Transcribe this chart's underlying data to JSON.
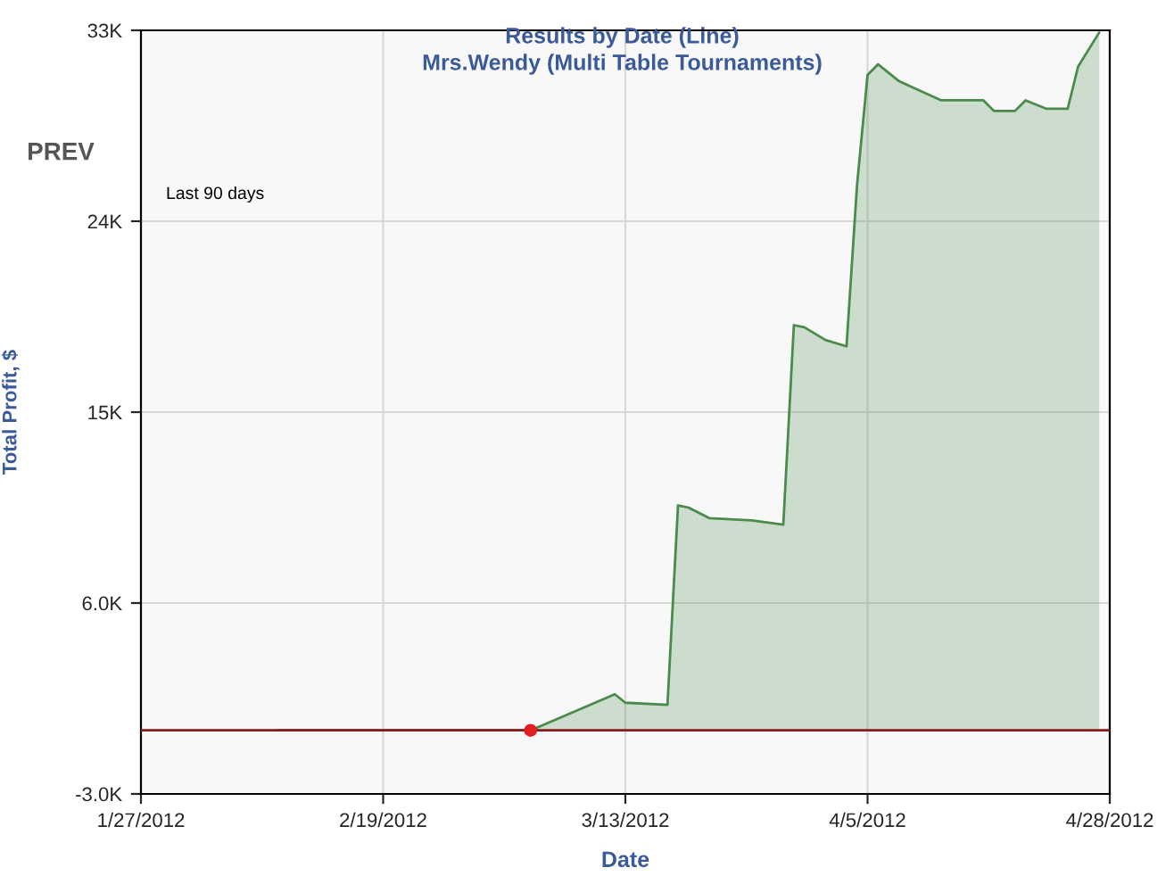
{
  "chart_data": {
    "type": "area",
    "title": "Results by Date (Line)",
    "subtitle": "Mrs.Wendy (Multi Table Tournaments)",
    "xlabel": "Date",
    "ylabel": "Total Profit, $",
    "annotations": [
      "PREV",
      "Last 90 days"
    ],
    "xlim": [
      "2012-01-27",
      "2012-04-28"
    ],
    "xticks": [
      {
        "value": "2012-01-27",
        "label": "1/27/2012"
      },
      {
        "value": "2012-02-19",
        "label": "2/19/2012"
      },
      {
        "value": "2012-03-13",
        "label": "3/13/2012"
      },
      {
        "value": "2012-04-05",
        "label": "4/5/2012"
      },
      {
        "value": "2012-04-28",
        "label": "4/28/2012"
      }
    ],
    "ylim": [
      -3000,
      33000
    ],
    "yticks": [
      {
        "value": -3000,
        "label": "-3.0K"
      },
      {
        "value": 6000,
        "label": "6.0K"
      },
      {
        "value": 15000,
        "label": "15K"
      },
      {
        "value": 24000,
        "label": "24K"
      },
      {
        "value": 33000,
        "label": "33K"
      }
    ],
    "grid": true,
    "legend": false,
    "ref_lines": [
      {
        "axis": "y",
        "value": 0,
        "color": "#8b1a1a"
      }
    ],
    "series": [
      {
        "color": "#4a8a4a",
        "x": [
          "2012-02-09",
          "2012-03-04",
          "2012-03-12",
          "2012-03-13",
          "2012-03-17",
          "2012-03-18",
          "2012-03-19",
          "2012-03-21",
          "2012-03-25",
          "2012-03-28",
          "2012-03-29",
          "2012-03-30",
          "2012-04-01",
          "2012-04-03",
          "2012-04-04",
          "2012-04-05",
          "2012-04-06",
          "2012-04-08",
          "2012-04-12",
          "2012-04-16",
          "2012-04-17",
          "2012-04-19",
          "2012-04-20",
          "2012-04-22",
          "2012-04-24",
          "2012-04-25",
          "2012-04-27"
        ],
        "values": [
          0,
          0,
          1700,
          1300,
          1200,
          10600,
          10500,
          10000,
          9900,
          9700,
          19100,
          19000,
          18400,
          18100,
          25700,
          30900,
          31400,
          30600,
          29700,
          29700,
          29200,
          29200,
          29700,
          29300,
          29300,
          31300,
          32900
        ]
      },
      {
        "type": "scatter",
        "color": "#e02020",
        "x": [
          "2012-03-04"
        ],
        "values": [
          0
        ]
      }
    ]
  }
}
